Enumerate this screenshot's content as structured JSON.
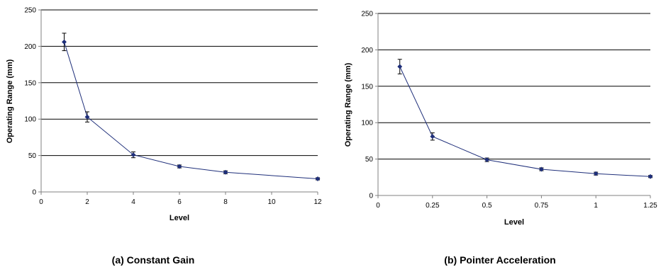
{
  "chart_data": [
    {
      "type": "line",
      "caption": "(a) Constant Gain",
      "xlabel": "Level",
      "ylabel": "Operating Range (mm)",
      "xlim": [
        0,
        12
      ],
      "ylim": [
        0,
        250
      ],
      "x_ticks": [
        0,
        2,
        4,
        6,
        8,
        10,
        12
      ],
      "y_ticks": [
        0,
        50,
        100,
        150,
        200,
        250
      ],
      "x_tick_labels": [
        "0",
        "2",
        "4",
        "6",
        "8",
        "10",
        "12"
      ],
      "y_tick_labels": [
        "0",
        "50",
        "100",
        "150",
        "200",
        "250"
      ],
      "grid": "horizontal",
      "marker": "diamond",
      "line_color": "#1f2f7a",
      "series": [
        {
          "x": [
            1,
            2,
            4,
            6,
            8,
            12
          ],
          "y": [
            206,
            103,
            51,
            35,
            27,
            18
          ],
          "error": [
            12,
            7,
            4,
            2,
            2,
            1.5
          ]
        }
      ]
    },
    {
      "type": "line",
      "caption": "(b) Pointer Acceleration",
      "xlabel": "Level",
      "ylabel": "Operating Range (mm)",
      "xlim": [
        0,
        1.25
      ],
      "ylim": [
        0,
        250
      ],
      "x_ticks": [
        0,
        0.25,
        0.5,
        0.75,
        1,
        1.25
      ],
      "y_ticks": [
        0,
        50,
        100,
        150,
        200,
        250
      ],
      "x_tick_labels": [
        "0",
        "0.25",
        "0.5",
        "0.75",
        "1",
        "1.25"
      ],
      "y_tick_labels": [
        "0",
        "50",
        "100",
        "150",
        "200",
        "250"
      ],
      "grid": "horizontal",
      "marker": "diamond",
      "line_color": "#1f2f7a",
      "series": [
        {
          "x": [
            0.1,
            0.25,
            0.5,
            0.75,
            1,
            1.25
          ],
          "y": [
            177,
            81,
            49,
            36,
            30,
            26
          ],
          "error": [
            10,
            5,
            2.5,
            2,
            2,
            1.5
          ]
        }
      ]
    }
  ]
}
